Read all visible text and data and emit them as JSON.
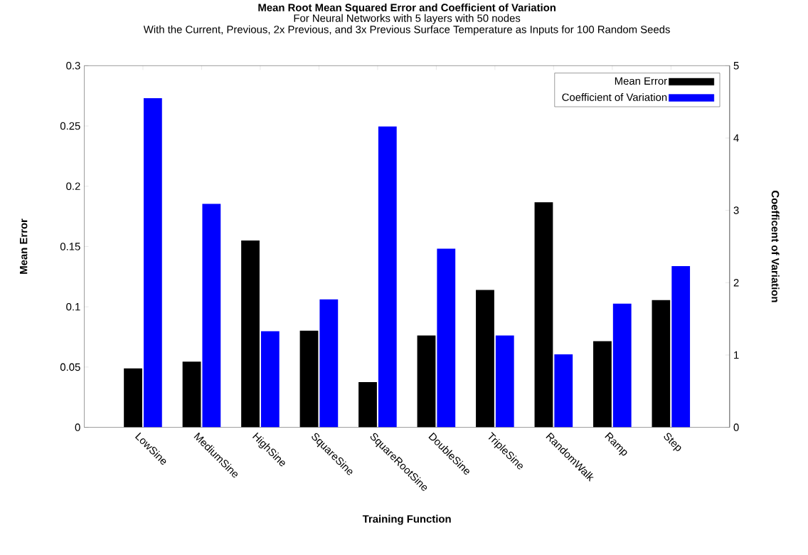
{
  "chart_data": {
    "type": "bar",
    "title": "Mean Root Mean Squared Error and Coefficient of Variation",
    "subtitle": "For Neural Networks with 5 layers with 50 nodes",
    "annotations": [
      "With the Current, Previous, 2x Previous, and 3x Previous Surface Temperature as Inputs for 100 Random Seeds"
    ],
    "xlabel": "Training Function",
    "ylabel": "Mean Error",
    "y2label": "Coefficent of Variation",
    "categories": [
      "LowSine",
      "MediumSine",
      "HighSine",
      "SquareSine",
      "SquareRootSine",
      "DoubleSine",
      "TripleSine",
      "RandomWalk",
      "Ramp",
      "Step"
    ],
    "series": [
      {
        "name": "Mean Error",
        "color": "#000000",
        "values": [
          0.0489,
          0.0545,
          0.155,
          0.0802,
          0.0375,
          0.0762,
          0.114,
          0.1867,
          0.0714,
          0.1056
        ]
      },
      {
        "name": "Coefficient of Variation",
        "color": "#0000ff",
        "axis": "y2",
        "values": [
          4.55,
          3.09,
          1.33,
          1.77,
          4.16,
          2.47,
          1.27,
          1.01,
          1.71,
          2.23
        ]
      }
    ],
    "ylim": [
      0,
      0.3
    ],
    "yticks": [
      0,
      0.05,
      0.1,
      0.15,
      0.2,
      0.25,
      0.3
    ],
    "y2lim": [
      0,
      5
    ],
    "y2ticks": [
      0,
      1,
      2,
      3,
      4,
      5
    ],
    "grid": false,
    "legend": "top right"
  }
}
